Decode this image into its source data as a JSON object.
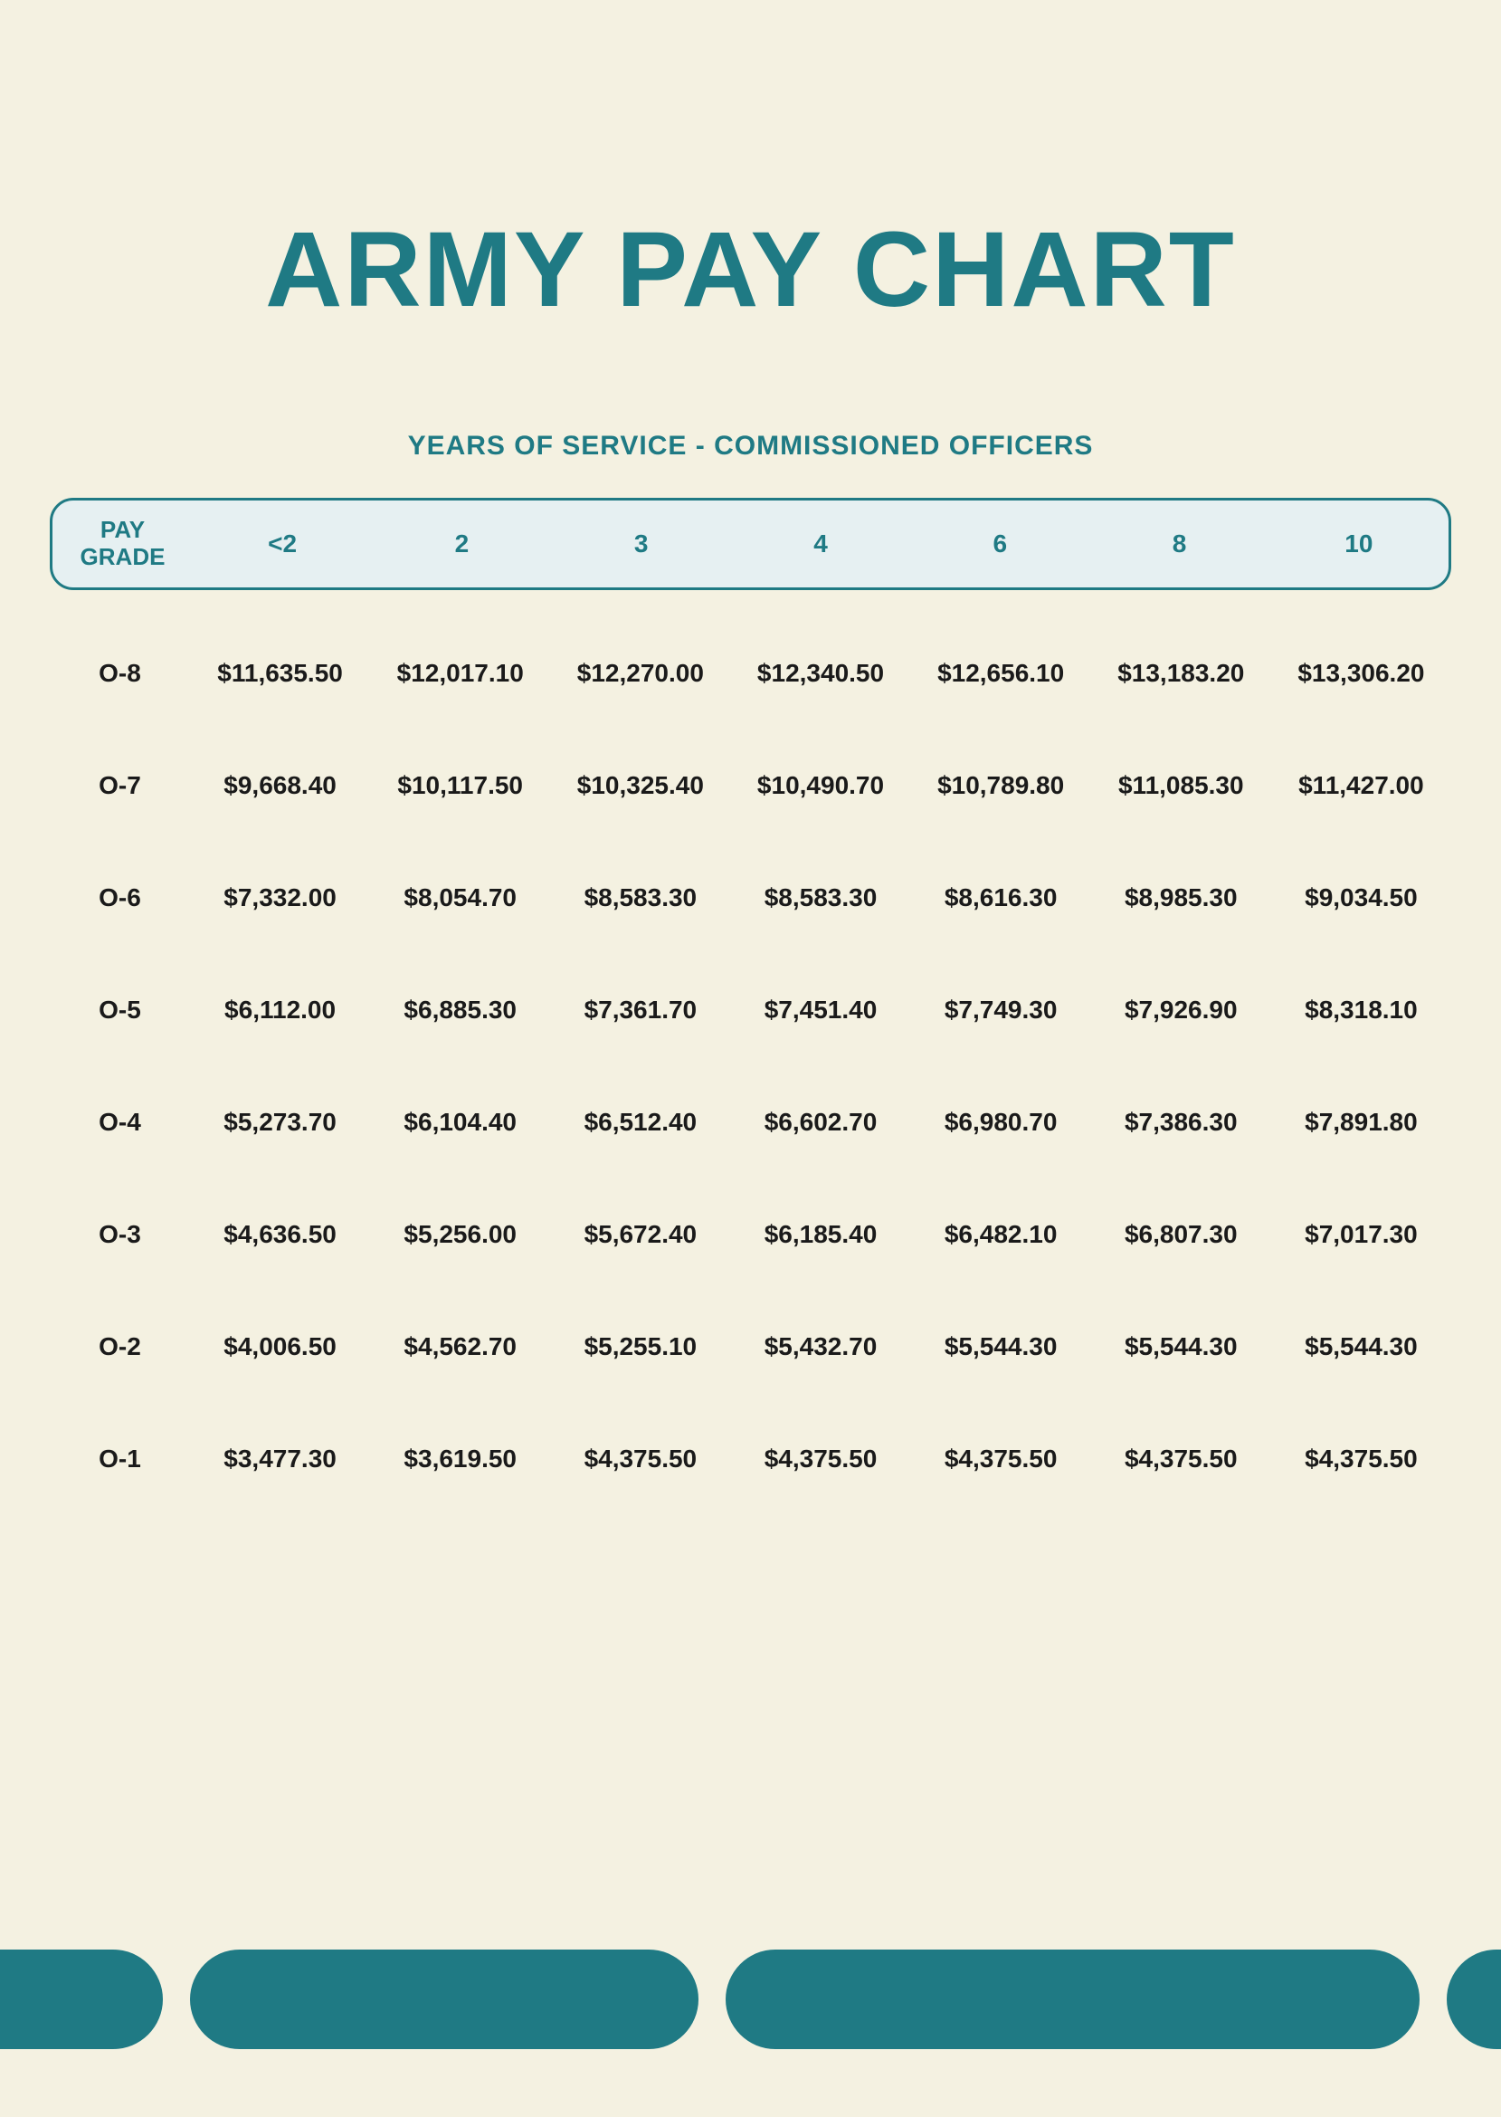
{
  "title": "ARMY PAY CHART",
  "subtitle": "YEARS OF SERVICE - COMMISSIONED OFFICERS",
  "colors": {
    "background": "#f4f1e1",
    "accent": "#1f7a84",
    "header_fill": "#e6f0f2",
    "text": "#1a1a1a"
  },
  "table": {
    "type": "table",
    "corner_label_line1": "PAY",
    "corner_label_line2": "GRADE",
    "columns": [
      "<2",
      "2",
      "3",
      "4",
      "6",
      "8",
      "10"
    ],
    "rows": [
      {
        "grade": "O-8",
        "values": [
          "$11,635.50",
          "$12,017.10",
          "$12,270.00",
          "$12,340.50",
          "$12,656.10",
          "$13,183.20",
          "$13,306.20"
        ]
      },
      {
        "grade": "O-7",
        "values": [
          "$9,668.40",
          "$10,117.50",
          "$10,325.40",
          "$10,490.70",
          "$10,789.80",
          "$11,085.30",
          "$11,427.00"
        ]
      },
      {
        "grade": "O-6",
        "values": [
          "$7,332.00",
          "$8,054.70",
          "$8,583.30",
          "$8,583.30",
          "$8,616.30",
          "$8,985.30",
          "$9,034.50"
        ]
      },
      {
        "grade": "O-5",
        "values": [
          "$6,112.00",
          "$6,885.30",
          "$7,361.70",
          "$7,451.40",
          "$7,749.30",
          "$7,926.90",
          "$8,318.10"
        ]
      },
      {
        "grade": "O-4",
        "values": [
          "$5,273.70",
          "$6,104.40",
          "$6,512.40",
          "$6,602.70",
          "$6,980.70",
          "$7,386.30",
          "$7,891.80"
        ]
      },
      {
        "grade": "O-3",
        "values": [
          "$4,636.50",
          "$5,256.00",
          "$5,672.40",
          "$6,185.40",
          "$6,482.10",
          "$6,807.30",
          "$7,017.30"
        ]
      },
      {
        "grade": "O-2",
        "values": [
          "$4,006.50",
          "$4,562.70",
          "$5,255.10",
          "$5,432.70",
          "$5,544.30",
          "$5,544.30",
          "$5,544.30"
        ]
      },
      {
        "grade": "O-1",
        "values": [
          "$3,477.30",
          "$3,619.50",
          "$4,375.50",
          "$4,375.50",
          "$4,375.50",
          "$4,375.50",
          "$4,375.50"
        ]
      }
    ]
  }
}
